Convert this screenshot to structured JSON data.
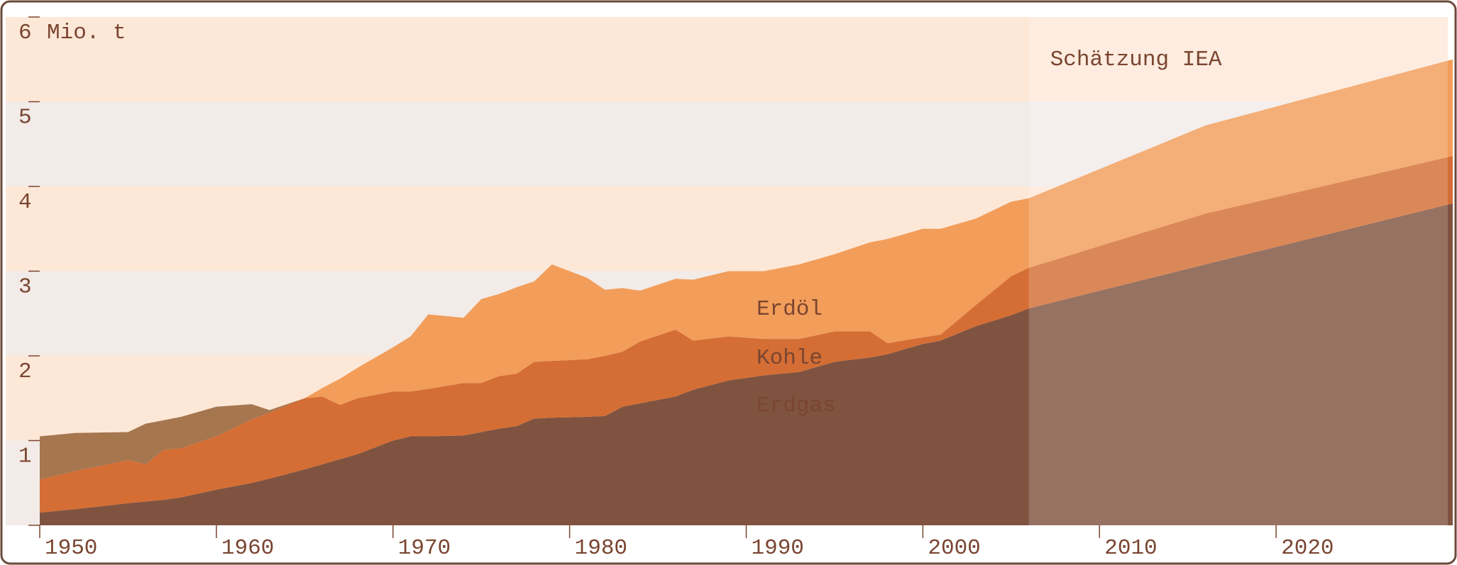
{
  "chart_data": {
    "type": "stacked_area",
    "y_label": "Mio. t",
    "annotation": "Schätzung IEA",
    "forecast_start": 2006,
    "forecast_overlay": "rgba(255,255,255,0.18)",
    "band_colors": [
      "#f2ebe8",
      "#fde8d8"
    ],
    "x": [
      1950,
      1952,
      1955,
      1956,
      1957,
      1958,
      1960,
      1962,
      1963,
      1965,
      1966,
      1967,
      1968,
      1970,
      1971,
      1972,
      1974,
      1975,
      1976,
      1977,
      1978,
      1979,
      1981,
      1982,
      1983,
      1984,
      1986,
      1987,
      1989,
      1991,
      1993,
      1995,
      1997,
      1998,
      2000,
      2001,
      2003,
      2005,
      2006,
      2016,
      2030
    ],
    "series": [
      {
        "name": "Erdgas",
        "color": "#7f5340",
        "label_color": "#fdf1e8",
        "values": [
          0.15,
          0.19,
          0.26,
          0.28,
          0.3,
          0.33,
          0.42,
          0.5,
          0.55,
          0.66,
          0.72,
          0.78,
          0.84,
          1.0,
          1.05,
          1.05,
          1.06,
          1.1,
          1.14,
          1.17,
          1.26,
          1.27,
          1.28,
          1.29,
          1.4,
          1.44,
          1.52,
          1.6,
          1.71,
          1.77,
          1.81,
          1.93,
          1.98,
          2.02,
          2.14,
          2.18,
          2.35,
          2.48,
          2.56,
          3.08,
          3.8
        ]
      },
      {
        "name": "Kohle",
        "color": "#d46e35",
        "label_color": "#fdf1e8",
        "values": [
          0.39,
          0.45,
          0.51,
          0.44,
          0.59,
          0.58,
          0.63,
          0.75,
          0.78,
          0.84,
          0.8,
          0.64,
          0.66,
          0.58,
          0.53,
          0.56,
          0.62,
          0.58,
          0.62,
          0.62,
          0.67,
          0.67,
          0.68,
          0.71,
          0.65,
          0.73,
          0.79,
          0.58,
          0.52,
          0.43,
          0.39,
          0.36,
          0.31,
          0.13,
          0.08,
          0.07,
          0.25,
          0.46,
          0.48,
          0.6,
          0.56
        ]
      },
      {
        "name": "Erdöl",
        "color": "#f29d5a",
        "label_color": "#7a4530",
        "values": [
          0,
          0,
          0,
          0,
          0,
          0,
          0,
          0,
          0,
          0,
          0.1,
          0.31,
          0.36,
          0.52,
          0.65,
          0.88,
          0.77,
          0.99,
          0.97,
          1.02,
          0.95,
          1.14,
          0.96,
          0.78,
          0.75,
          0.6,
          0.6,
          0.72,
          0.77,
          0.8,
          0.88,
          0.91,
          1.05,
          1.23,
          1.28,
          1.25,
          1.02,
          0.88,
          0.82,
          1.04,
          1.14
        ]
      },
      {
        "color": "#a6764f",
        "values": [
          0.51,
          0.45,
          0.33,
          0.48,
          0.35,
          0.37,
          0.35,
          0.18,
          0.03,
          0,
          0,
          0,
          0,
          0,
          0,
          0,
          0,
          0,
          0,
          0,
          0,
          0,
          0,
          0,
          0,
          0,
          0,
          0,
          0,
          0,
          0,
          0,
          0,
          0,
          0,
          0,
          0,
          0,
          0,
          0,
          0
        ]
      }
    ],
    "xlim": [
      1950,
      2030
    ],
    "xticks": [
      1950,
      1960,
      1970,
      1980,
      1990,
      2000,
      2010,
      2020
    ],
    "ylim": [
      0,
      6
    ],
    "yticks": [
      0,
      1,
      2,
      3,
      4,
      5,
      6
    ],
    "grid": true
  }
}
